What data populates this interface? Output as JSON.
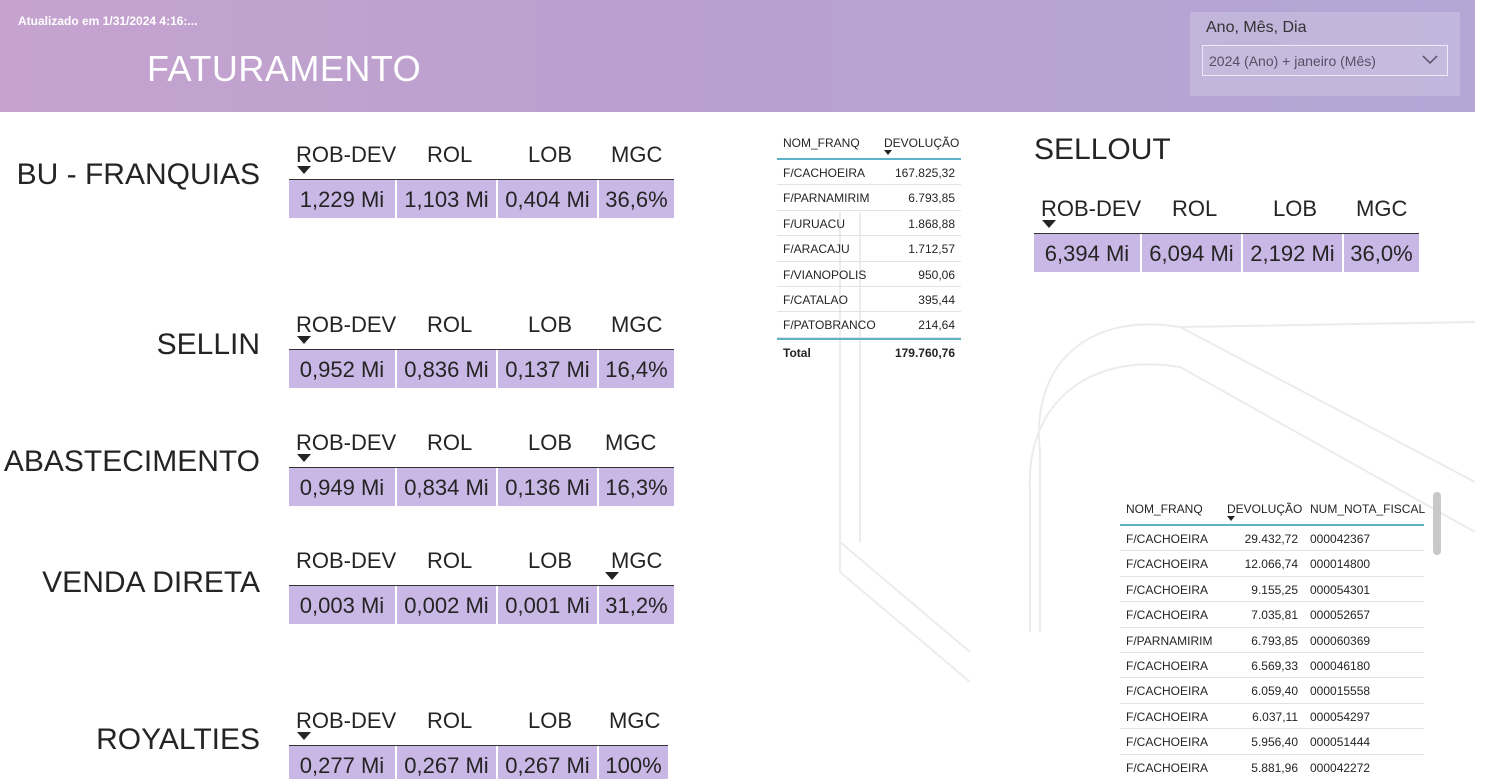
{
  "header": {
    "updated": "Atualizado em 1/31/2024 4:16:...",
    "title": "FATURAMENTO",
    "slicer": {
      "label": "Ano, Mês, Dia",
      "value": "2024 (Ano) + janeiro (Mês)",
      "icon": "chevron-down-icon"
    }
  },
  "kpi_headers": {
    "rob_dev": "ROB-DEV",
    "rol": "ROL",
    "lob": "LOB",
    "mgc": "MGC"
  },
  "sections": {
    "franquias": {
      "label": "BU - FRANQUIAS",
      "rob_dev": "1,229 Mi",
      "rol": "1,103 Mi",
      "lob": "0,404 Mi",
      "mgc": "36,6%"
    },
    "sellin": {
      "label": "SELLIN",
      "rob_dev": "0,952 Mi",
      "rol": "0,836 Mi",
      "lob": "0,137 Mi",
      "mgc": "16,4%"
    },
    "abastecimento": {
      "label": "ABASTECIMENTO",
      "rob_dev": "0,949 Mi",
      "rol": "0,834 Mi",
      "lob": "0,136 Mi",
      "mgc": "16,3%"
    },
    "venda_direta": {
      "label": "VENDA DIRETA",
      "rob_dev": "0,003 Mi",
      "rol": "0,002 Mi",
      "lob": "0,001 Mi",
      "mgc": "31,2%"
    },
    "royalties": {
      "label": "ROYALTIES",
      "rob_dev": "0,277 Mi",
      "rol": "0,267 Mi",
      "lob": "0,267 Mi",
      "mgc": "100%"
    },
    "sellout": {
      "label": "SELLOUT",
      "rob_dev": "6,394 Mi",
      "rol": "6,094 Mi",
      "lob": "2,192 Mi",
      "mgc": "36,0%"
    }
  },
  "table_devolucao": {
    "headers": {
      "nom_franq": "NOM_FRANQ",
      "devolucao": "DEVOLUÇÃO"
    },
    "rows": [
      {
        "nom": "F/CACHOEIRA",
        "dev": "167.825,32"
      },
      {
        "nom": "F/PARNAMIRIM",
        "dev": "6.793,85"
      },
      {
        "nom": "F/URUACU",
        "dev": "1.868,88"
      },
      {
        "nom": "F/ARACAJU",
        "dev": "1.712,57"
      },
      {
        "nom": "F/VIANOPOLIS",
        "dev": "950,06"
      },
      {
        "nom": "F/CATALAO",
        "dev": "395,44"
      },
      {
        "nom": "F/PATOBRANCO",
        "dev": "214,64"
      }
    ],
    "total_label": "Total",
    "total_value": "179.760,76"
  },
  "table_notas": {
    "headers": {
      "nom_franq": "NOM_FRANQ",
      "devolucao": "DEVOLUÇÃO",
      "num_nota": "NUM_NOTA_FISCAL"
    },
    "rows": [
      {
        "nom": "F/CACHOEIRA",
        "dev": "29.432,72",
        "nota": "000042367"
      },
      {
        "nom": "F/CACHOEIRA",
        "dev": "12.066,74",
        "nota": "000014800"
      },
      {
        "nom": "F/CACHOEIRA",
        "dev": "9.155,25",
        "nota": "000054301"
      },
      {
        "nom": "F/CACHOEIRA",
        "dev": "7.035,81",
        "nota": "000052657"
      },
      {
        "nom": "F/PARNAMIRIM",
        "dev": "6.793,85",
        "nota": "000060369"
      },
      {
        "nom": "F/CACHOEIRA",
        "dev": "6.569,33",
        "nota": "000046180"
      },
      {
        "nom": "F/CACHOEIRA",
        "dev": "6.059,40",
        "nota": "000015558"
      },
      {
        "nom": "F/CACHOEIRA",
        "dev": "6.037,11",
        "nota": "000054297"
      },
      {
        "nom": "F/CACHOEIRA",
        "dev": "5.956,40",
        "nota": "000051444"
      },
      {
        "nom": "F/CACHOEIRA",
        "dev": "5.881,96",
        "nota": "000042272"
      }
    ]
  },
  "colors": {
    "header": "#b9a0cf",
    "kpi_cell": "#c9b8e6",
    "table_accent": "#5eb1c7"
  }
}
